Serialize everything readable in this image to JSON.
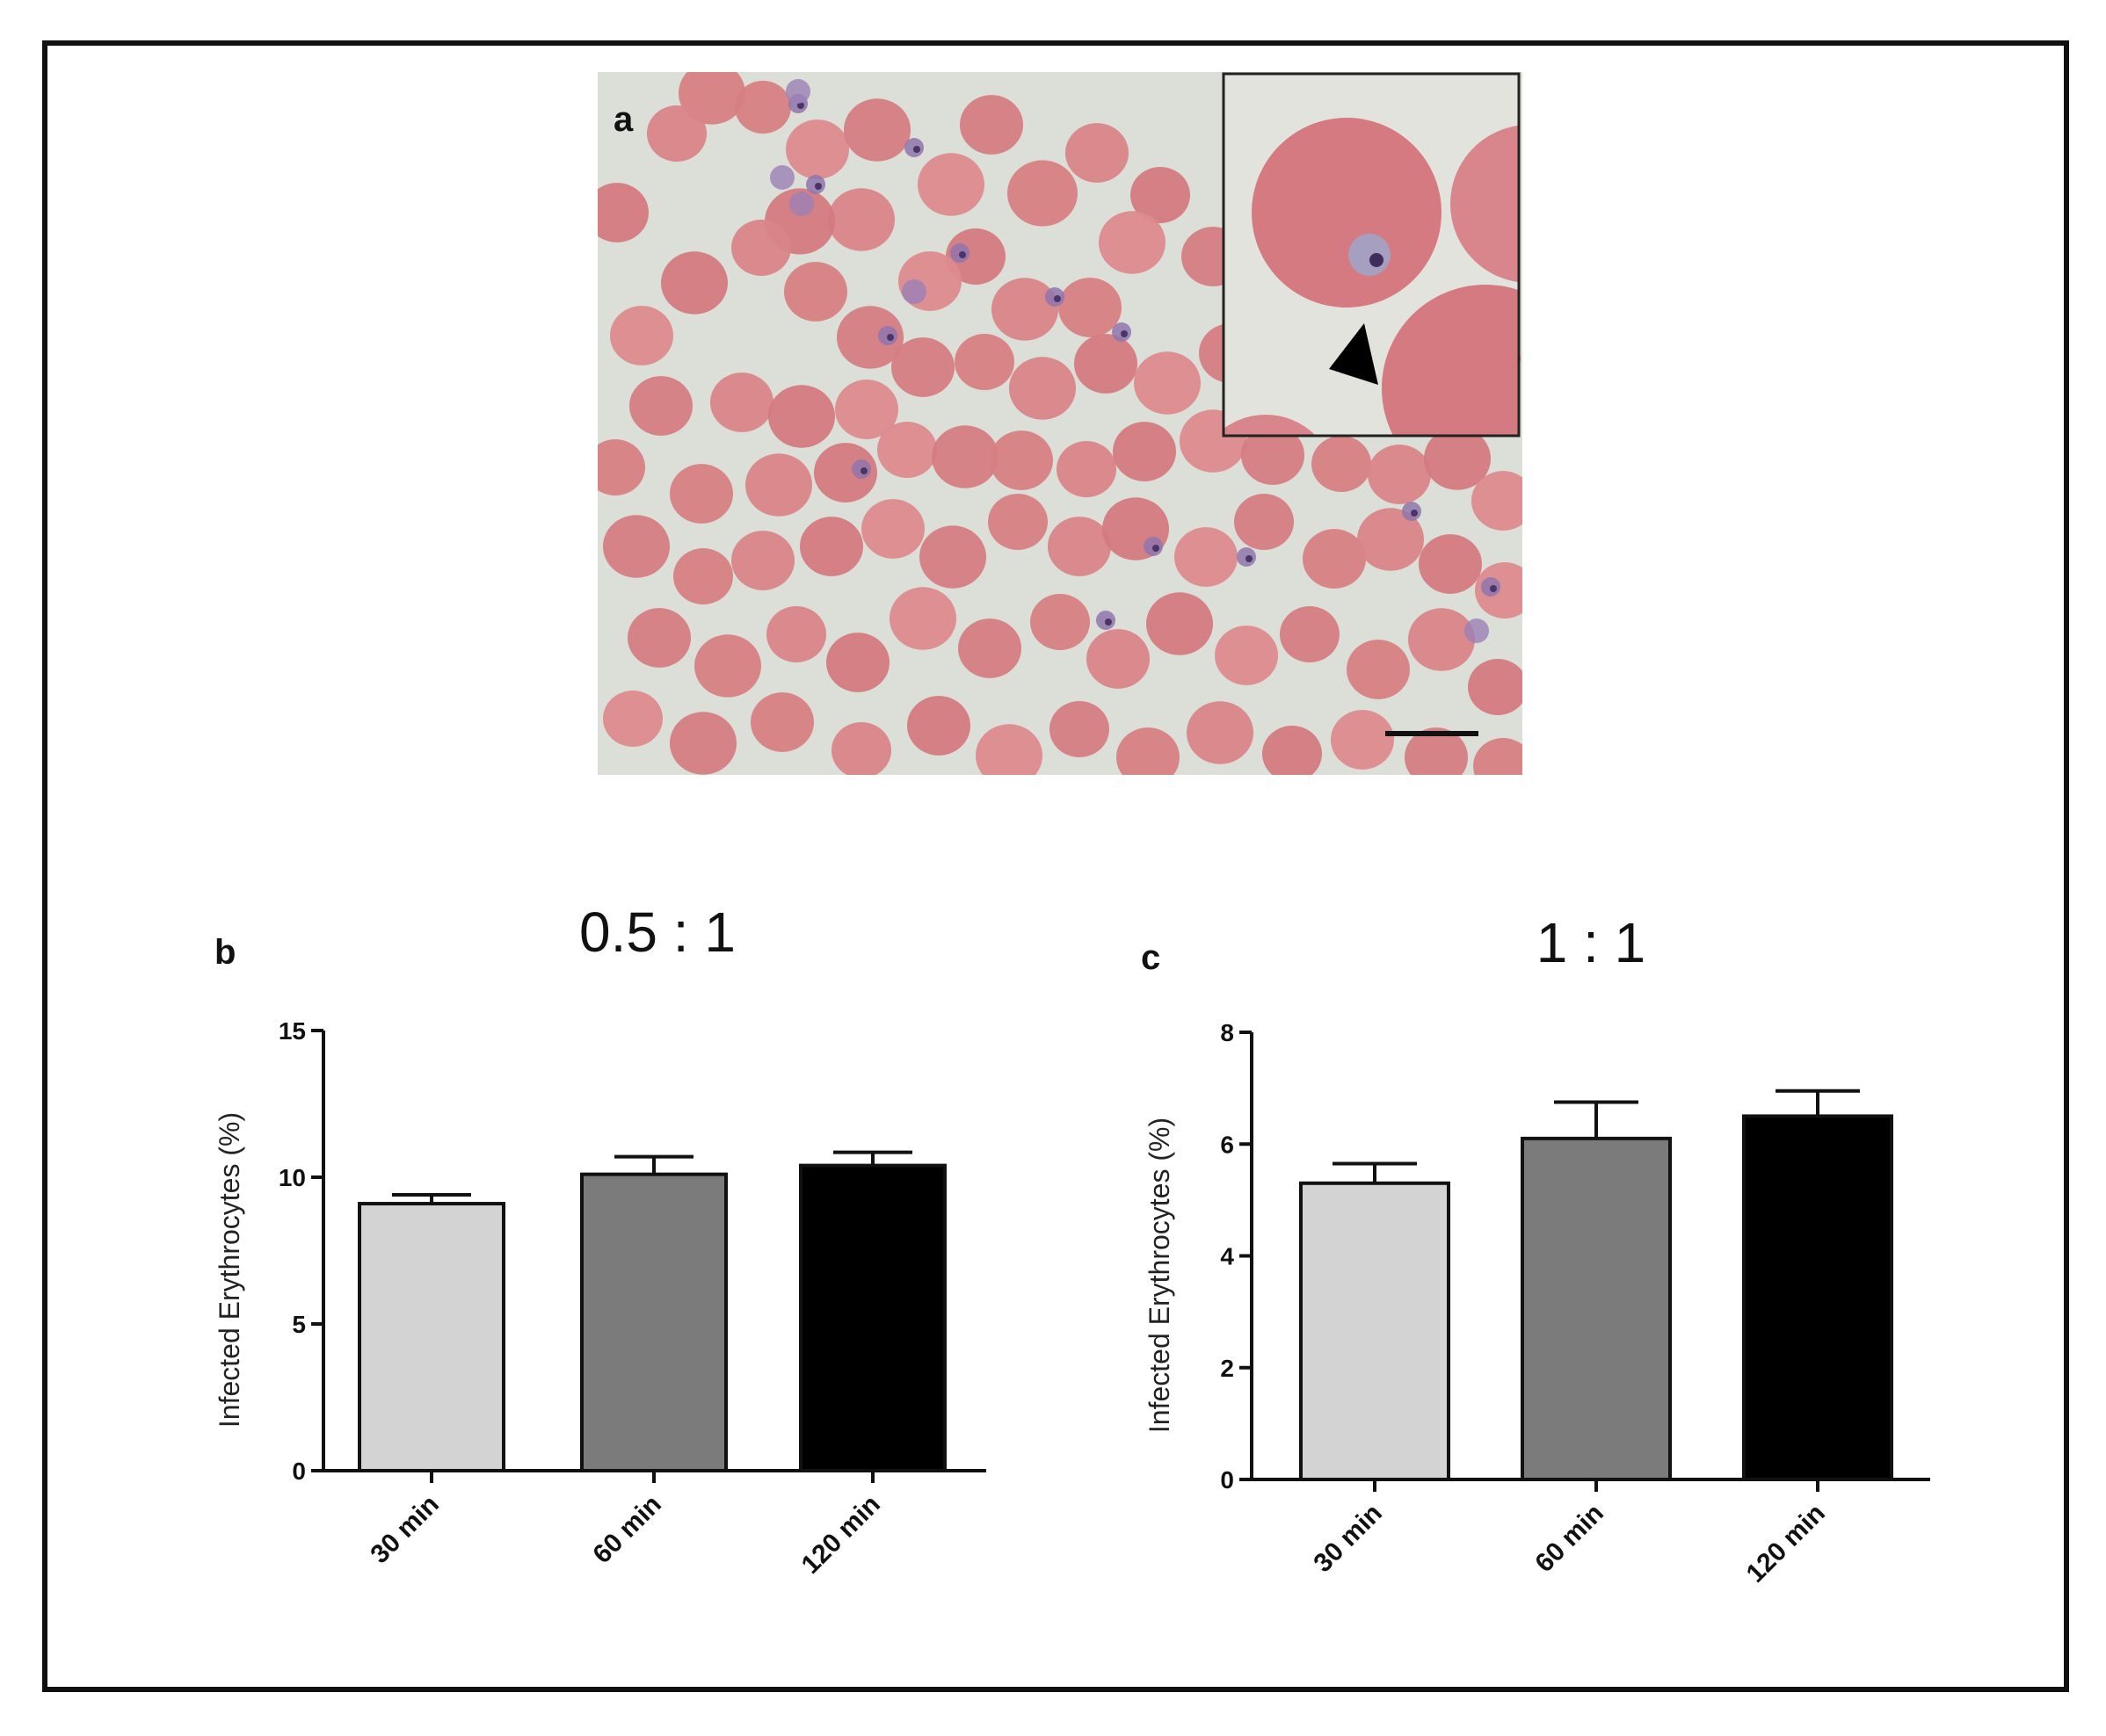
{
  "panels": {
    "a_label": "a",
    "b_label": "b",
    "c_label": "c"
  },
  "colors": {
    "frame": "#111111",
    "background": "#dcdfd7",
    "erythrocyte": "#d77f84",
    "parasite": "#8f76ad",
    "bar_30": "#d3d3d3",
    "bar_60": "#7b7b7b",
    "bar_120": "#000000"
  },
  "chart_data": [
    {
      "type": "bar",
      "title": "0.5 : 1",
      "categories": [
        "30 min",
        "60 min",
        "120 min"
      ],
      "values": [
        9.1,
        10.1,
        10.4
      ],
      "errors": [
        0.3,
        0.6,
        0.45
      ],
      "ylabel": "Infected Erythrocytes (%)",
      "ylim": [
        0,
        15
      ],
      "yticks": [
        0,
        5,
        10,
        15
      ],
      "bar_colors": [
        "#d3d3d3",
        "#7b7b7b",
        "#000000"
      ]
    },
    {
      "type": "bar",
      "title": "1 : 1",
      "categories": [
        "30 min",
        "60 min",
        "120 min"
      ],
      "values": [
        5.3,
        6.1,
        6.5
      ],
      "errors": [
        0.35,
        0.65,
        0.45
      ],
      "ylabel": "Infected Erythrocytes (%)",
      "ylim": [
        0,
        8
      ],
      "yticks": [
        0,
        2,
        4,
        6,
        8
      ],
      "bar_colors": [
        "#d3d3d3",
        "#7b7b7b",
        "#000000"
      ]
    }
  ]
}
